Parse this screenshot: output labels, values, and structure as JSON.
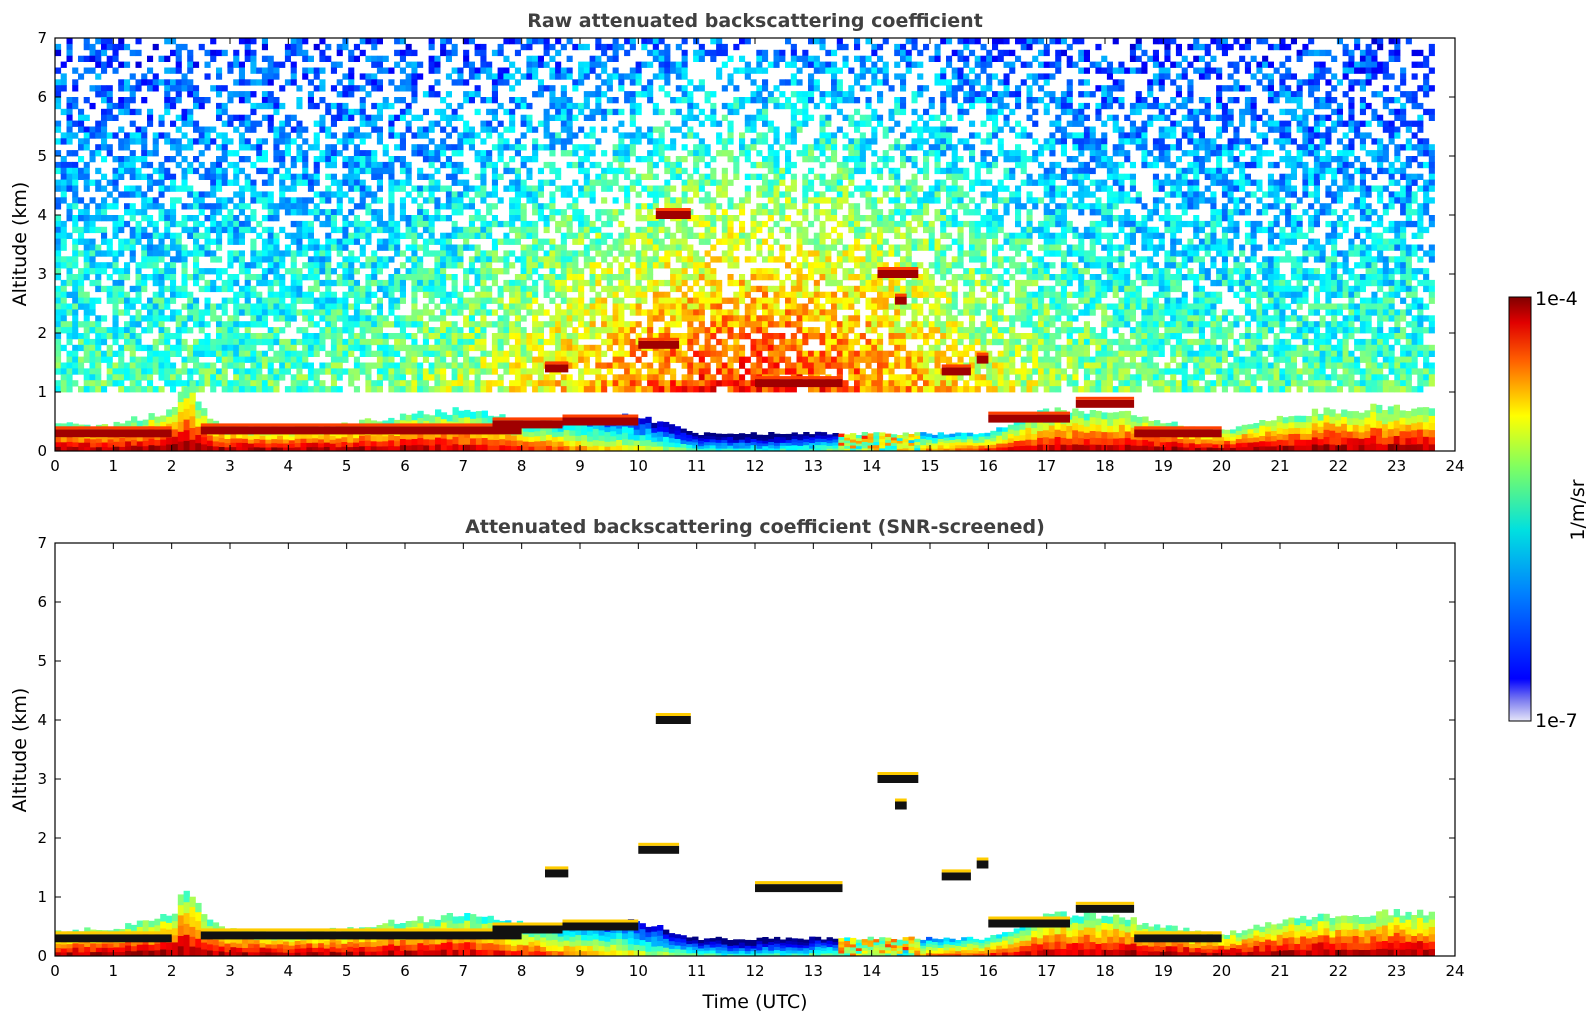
{
  "chart_data": [
    {
      "type": "heatmap",
      "title": "Raw attenuated backscattering coefficient",
      "xlabel": "",
      "ylabel": "Altitude (km)",
      "xlim": [
        0,
        24
      ],
      "ylim": [
        0,
        7
      ],
      "x_ticks": [
        0,
        1,
        2,
        3,
        4,
        5,
        6,
        7,
        8,
        9,
        10,
        11,
        12,
        13,
        14,
        15,
        16,
        17,
        18,
        19,
        20,
        21,
        22,
        23,
        24
      ],
      "y_ticks": [
        0,
        1,
        2,
        3,
        4,
        5,
        6,
        7
      ],
      "data_end_time": 23.65,
      "noise_field": true,
      "boundary_layer_top_km": {
        "time": [
          0,
          1,
          2,
          2.3,
          2.6,
          3,
          4,
          5,
          6,
          7,
          8,
          9,
          10,
          11,
          12,
          13,
          14,
          15,
          16,
          17,
          18,
          19,
          20,
          21,
          22,
          23,
          23.65
        ],
        "height": [
          0.45,
          0.45,
          0.7,
          1.2,
          0.6,
          0.45,
          0.4,
          0.45,
          0.6,
          0.7,
          0.55,
          0.5,
          0.6,
          0.3,
          0.3,
          0.3,
          0.3,
          0.3,
          0.3,
          0.7,
          0.7,
          0.5,
          0.35,
          0.6,
          0.7,
          0.75,
          0.7
        ]
      },
      "cloud_layers": [
        {
          "t0": 0,
          "t1": 2.0,
          "h": 0.3
        },
        {
          "t0": 2.5,
          "t1": 8.0,
          "h": 0.35
        },
        {
          "t0": 7.5,
          "t1": 8.7,
          "h": 0.45
        },
        {
          "t0": 8.7,
          "t1": 10.0,
          "h": 0.5
        },
        {
          "t0": 8.4,
          "t1": 8.8,
          "h": 1.4
        },
        {
          "t0": 10.3,
          "t1": 10.9,
          "h": 4.0
        },
        {
          "t0": 10.0,
          "t1": 10.7,
          "h": 1.8
        },
        {
          "t0": 12.0,
          "t1": 13.5,
          "h": 1.15
        },
        {
          "t0": 14.1,
          "t1": 14.8,
          "h": 3.0
        },
        {
          "t0": 14.4,
          "t1": 14.6,
          "h": 2.55
        },
        {
          "t0": 15.2,
          "t1": 15.7,
          "h": 1.35
        },
        {
          "t0": 15.8,
          "t1": 16.0,
          "h": 1.55
        },
        {
          "t0": 16.0,
          "t1": 17.4,
          "h": 0.55
        },
        {
          "t0": 17.5,
          "t1": 18.5,
          "h": 0.8
        },
        {
          "t0": 18.5,
          "t1": 20.0,
          "h": 0.3
        }
      ],
      "colorbar": {
        "min": "1e-7",
        "max": "1e-4",
        "label": "1/m/sr",
        "scale": "log",
        "colormap": "jet"
      }
    },
    {
      "type": "heatmap",
      "title": "Attenuated backscattering coefficient (SNR-screened)",
      "xlabel": "Time (UTC)",
      "ylabel": "Altitude (km)",
      "xlim": [
        0,
        24
      ],
      "ylim": [
        0,
        7
      ],
      "x_ticks": [
        0,
        1,
        2,
        3,
        4,
        5,
        6,
        7,
        8,
        9,
        10,
        11,
        12,
        13,
        14,
        15,
        16,
        17,
        18,
        19,
        20,
        21,
        22,
        23,
        24
      ],
      "y_ticks": [
        0,
        1,
        2,
        3,
        4,
        5,
        6,
        7
      ],
      "data_end_time": 23.65,
      "noise_field": false,
      "boundary_layer_top_km": {
        "time": [
          0,
          1,
          2,
          2.3,
          2.6,
          3,
          4,
          5,
          6,
          7,
          8,
          9,
          10,
          11,
          12,
          13,
          14,
          15,
          16,
          17,
          18,
          19,
          20,
          21,
          22,
          23,
          23.65
        ],
        "height": [
          0.45,
          0.45,
          0.7,
          1.2,
          0.6,
          0.45,
          0.4,
          0.45,
          0.6,
          0.7,
          0.55,
          0.5,
          0.6,
          0.3,
          0.3,
          0.3,
          0.3,
          0.3,
          0.3,
          0.7,
          0.7,
          0.5,
          0.35,
          0.6,
          0.7,
          0.75,
          0.7
        ]
      },
      "cloud_layers": [
        {
          "t0": 0,
          "t1": 2.0,
          "h": 0.3
        },
        {
          "t0": 2.5,
          "t1": 8.0,
          "h": 0.35
        },
        {
          "t0": 7.5,
          "t1": 8.7,
          "h": 0.45
        },
        {
          "t0": 8.7,
          "t1": 10.0,
          "h": 0.5
        },
        {
          "t0": 8.4,
          "t1": 8.8,
          "h": 1.4
        },
        {
          "t0": 10.3,
          "t1": 10.9,
          "h": 4.0
        },
        {
          "t0": 10.0,
          "t1": 10.7,
          "h": 1.8
        },
        {
          "t0": 12.0,
          "t1": 13.5,
          "h": 1.15
        },
        {
          "t0": 14.1,
          "t1": 14.8,
          "h": 3.0
        },
        {
          "t0": 14.4,
          "t1": 14.6,
          "h": 2.55
        },
        {
          "t0": 15.2,
          "t1": 15.7,
          "h": 1.35
        },
        {
          "t0": 15.8,
          "t1": 16.0,
          "h": 1.55
        },
        {
          "t0": 16.0,
          "t1": 17.4,
          "h": 0.55
        },
        {
          "t0": 17.5,
          "t1": 18.5,
          "h": 0.8
        },
        {
          "t0": 18.5,
          "t1": 20.0,
          "h": 0.3
        }
      ],
      "colorbar": {
        "min": "1e-7",
        "max": "1e-4",
        "label": "1/m/sr",
        "scale": "log",
        "colormap": "jet"
      }
    }
  ],
  "colorbar": {
    "max_label": "1e-4",
    "min_label": "1e-7",
    "unit_label": "1/m/sr"
  }
}
